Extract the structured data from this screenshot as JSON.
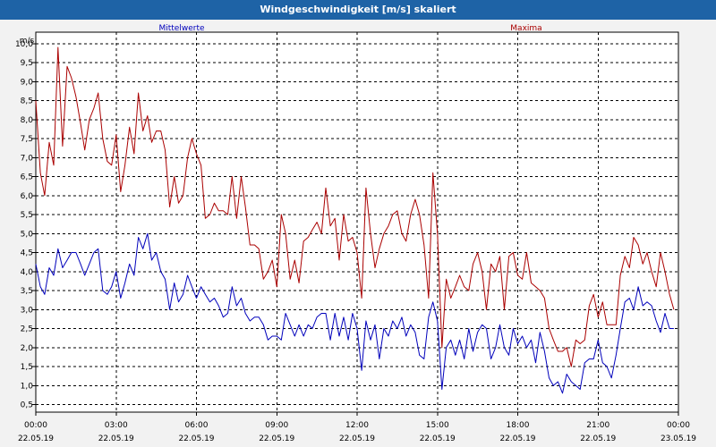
{
  "window": {
    "title": "Windgeschwindigkeit [m/s] skaliert"
  },
  "colors": {
    "titlebar": "#1e63a6",
    "mean": "#0000bb",
    "max": "#aa0000",
    "grid": "#000000"
  },
  "chart_data": {
    "type": "line",
    "title": "Windgeschwindigkeit [m/s] skaliert",
    "ylabel": "m/s",
    "ylim": [
      0.3,
      10.3
    ],
    "xlim_hours": [
      0,
      24
    ],
    "y_ticks": [
      "0,5",
      "1,0",
      "1,5",
      "2,0",
      "2,5",
      "3,0",
      "3,5",
      "4,0",
      "4,5",
      "5,0",
      "5,5",
      "6,0",
      "6,5",
      "7,0",
      "7,5",
      "8,0",
      "8,5",
      "9,0",
      "9,5",
      "10,0"
    ],
    "x_ticks": [
      {
        "time": "00:00",
        "date": "22.05.19"
      },
      {
        "time": "03:00",
        "date": "22.05.19"
      },
      {
        "time": "06:00",
        "date": "22.05.19"
      },
      {
        "time": "09:00",
        "date": "22.05.19"
      },
      {
        "time": "12:00",
        "date": "22.05.19"
      },
      {
        "time": "15:00",
        "date": "22.05.19"
      },
      {
        "time": "18:00",
        "date": "22.05.19"
      },
      {
        "time": "21:00",
        "date": "22.05.19"
      },
      {
        "time": "00:00",
        "date": "23.05.19"
      }
    ],
    "grid": true,
    "legend": [
      "Mittelwerte",
      "Maxima"
    ],
    "series": [
      {
        "name": "Mittelwerte",
        "color": "#0000bb",
        "points": [
          [
            0,
            4.2
          ],
          [
            0.17,
            3.6
          ],
          [
            0.33,
            3.4
          ],
          [
            0.5,
            4.1
          ],
          [
            0.67,
            3.9
          ],
          [
            0.83,
            4.6
          ],
          [
            1.0,
            4.1
          ],
          [
            1.17,
            4.3
          ],
          [
            1.33,
            4.5
          ],
          [
            1.5,
            4.5
          ],
          [
            1.67,
            4.2
          ],
          [
            1.83,
            3.9
          ],
          [
            2.0,
            4.2
          ],
          [
            2.17,
            4.5
          ],
          [
            2.33,
            4.6
          ],
          [
            2.5,
            3.5
          ],
          [
            2.67,
            3.4
          ],
          [
            2.83,
            3.6
          ],
          [
            3.0,
            4.0
          ],
          [
            3.17,
            3.3
          ],
          [
            3.33,
            3.7
          ],
          [
            3.5,
            4.2
          ],
          [
            3.67,
            3.9
          ],
          [
            3.83,
            4.9
          ],
          [
            4.0,
            4.6
          ],
          [
            4.17,
            5.0
          ],
          [
            4.33,
            4.3
          ],
          [
            4.5,
            4.5
          ],
          [
            4.67,
            4.0
          ],
          [
            4.83,
            3.8
          ],
          [
            5.0,
            3.0
          ],
          [
            5.17,
            3.7
          ],
          [
            5.33,
            3.2
          ],
          [
            5.5,
            3.4
          ],
          [
            5.67,
            3.9
          ],
          [
            5.83,
            3.6
          ],
          [
            6.0,
            3.3
          ],
          [
            6.17,
            3.6
          ],
          [
            6.33,
            3.4
          ],
          [
            6.5,
            3.2
          ],
          [
            6.67,
            3.3
          ],
          [
            6.83,
            3.1
          ],
          [
            7.0,
            2.8
          ],
          [
            7.17,
            2.9
          ],
          [
            7.33,
            3.6
          ],
          [
            7.5,
            3.1
          ],
          [
            7.67,
            3.3
          ],
          [
            7.83,
            2.9
          ],
          [
            8.0,
            2.7
          ],
          [
            8.17,
            2.8
          ],
          [
            8.33,
            2.8
          ],
          [
            8.5,
            2.6
          ],
          [
            8.67,
            2.2
          ],
          [
            8.83,
            2.3
          ],
          [
            9.0,
            2.3
          ],
          [
            9.17,
            2.2
          ],
          [
            9.33,
            2.9
          ],
          [
            9.5,
            2.6
          ],
          [
            9.67,
            2.3
          ],
          [
            9.83,
            2.6
          ],
          [
            10.0,
            2.3
          ],
          [
            10.17,
            2.6
          ],
          [
            10.33,
            2.5
          ],
          [
            10.5,
            2.8
          ],
          [
            10.67,
            2.9
          ],
          [
            10.83,
            2.9
          ],
          [
            11.0,
            2.2
          ],
          [
            11.17,
            2.9
          ],
          [
            11.33,
            2.3
          ],
          [
            11.5,
            2.8
          ],
          [
            11.67,
            2.2
          ],
          [
            11.83,
            2.9
          ],
          [
            12.0,
            2.5
          ],
          [
            12.17,
            1.4
          ],
          [
            12.33,
            2.7
          ],
          [
            12.5,
            2.2
          ],
          [
            12.67,
            2.6
          ],
          [
            12.83,
            1.7
          ],
          [
            13.0,
            2.5
          ],
          [
            13.17,
            2.3
          ],
          [
            13.33,
            2.7
          ],
          [
            13.5,
            2.5
          ],
          [
            13.67,
            2.8
          ],
          [
            13.83,
            2.3
          ],
          [
            14.0,
            2.6
          ],
          [
            14.17,
            2.4
          ],
          [
            14.33,
            1.8
          ],
          [
            14.5,
            1.7
          ],
          [
            14.67,
            2.8
          ],
          [
            14.83,
            3.2
          ],
          [
            15.0,
            2.7
          ],
          [
            15.17,
            0.9
          ],
          [
            15.33,
            2.0
          ],
          [
            15.5,
            2.2
          ],
          [
            15.67,
            1.8
          ],
          [
            15.83,
            2.2
          ],
          [
            16.0,
            1.7
          ],
          [
            16.17,
            2.5
          ],
          [
            16.33,
            1.9
          ],
          [
            16.5,
            2.4
          ],
          [
            16.67,
            2.6
          ],
          [
            16.83,
            2.5
          ],
          [
            17.0,
            1.7
          ],
          [
            17.17,
            2.0
          ],
          [
            17.33,
            2.6
          ],
          [
            17.5,
            2.0
          ],
          [
            17.67,
            1.8
          ],
          [
            17.83,
            2.5
          ],
          [
            18.0,
            2.1
          ],
          [
            18.17,
            2.3
          ],
          [
            18.33,
            2.0
          ],
          [
            18.5,
            2.2
          ],
          [
            18.67,
            1.6
          ],
          [
            18.83,
            2.4
          ],
          [
            19.0,
            1.9
          ],
          [
            19.17,
            1.2
          ],
          [
            19.33,
            1.0
          ],
          [
            19.5,
            1.1
          ],
          [
            19.67,
            0.8
          ],
          [
            19.83,
            1.3
          ],
          [
            20.0,
            1.1
          ],
          [
            20.17,
            1.0
          ],
          [
            20.33,
            0.9
          ],
          [
            20.5,
            1.6
          ],
          [
            20.67,
            1.7
          ],
          [
            20.83,
            1.7
          ],
          [
            21.0,
            2.2
          ],
          [
            21.17,
            1.6
          ],
          [
            21.33,
            1.5
          ],
          [
            21.5,
            1.2
          ],
          [
            21.67,
            1.8
          ],
          [
            21.83,
            2.5
          ],
          [
            22.0,
            3.2
          ],
          [
            22.17,
            3.3
          ],
          [
            22.33,
            3.0
          ],
          [
            22.5,
            3.6
          ],
          [
            22.67,
            3.1
          ],
          [
            22.83,
            3.2
          ],
          [
            23.0,
            3.1
          ],
          [
            23.17,
            2.7
          ],
          [
            23.33,
            2.4
          ],
          [
            23.5,
            2.9
          ],
          [
            23.67,
            2.5
          ],
          [
            23.83,
            2.5
          ]
        ]
      },
      {
        "name": "Maxima",
        "color": "#aa0000",
        "points": [
          [
            0,
            8.5
          ],
          [
            0.17,
            6.6
          ],
          [
            0.33,
            6.0
          ],
          [
            0.5,
            7.4
          ],
          [
            0.67,
            6.8
          ],
          [
            0.83,
            9.9
          ],
          [
            1.0,
            7.3
          ],
          [
            1.17,
            9.4
          ],
          [
            1.33,
            9.1
          ],
          [
            1.5,
            8.6
          ],
          [
            1.67,
            7.9
          ],
          [
            1.83,
            7.2
          ],
          [
            2.0,
            8.0
          ],
          [
            2.17,
            8.3
          ],
          [
            2.33,
            8.7
          ],
          [
            2.5,
            7.5
          ],
          [
            2.67,
            6.9
          ],
          [
            2.83,
            6.8
          ],
          [
            3.0,
            7.6
          ],
          [
            3.17,
            6.1
          ],
          [
            3.33,
            6.8
          ],
          [
            3.5,
            7.8
          ],
          [
            3.67,
            7.1
          ],
          [
            3.83,
            8.7
          ],
          [
            4.0,
            7.7
          ],
          [
            4.17,
            8.1
          ],
          [
            4.33,
            7.4
          ],
          [
            4.5,
            7.7
          ],
          [
            4.67,
            7.7
          ],
          [
            4.83,
            7.2
          ],
          [
            5.0,
            5.7
          ],
          [
            5.17,
            6.5
          ],
          [
            5.33,
            5.8
          ],
          [
            5.5,
            6.0
          ],
          [
            5.67,
            7.0
          ],
          [
            5.83,
            7.5
          ],
          [
            6.0,
            7.1
          ],
          [
            6.17,
            6.8
          ],
          [
            6.33,
            5.4
          ],
          [
            6.5,
            5.5
          ],
          [
            6.67,
            5.8
          ],
          [
            6.83,
            5.6
          ],
          [
            7.0,
            5.6
          ],
          [
            7.17,
            5.5
          ],
          [
            7.33,
            6.5
          ],
          [
            7.5,
            5.4
          ],
          [
            7.67,
            6.5
          ],
          [
            7.83,
            5.7
          ],
          [
            8.0,
            4.7
          ],
          [
            8.17,
            4.7
          ],
          [
            8.33,
            4.6
          ],
          [
            8.5,
            3.8
          ],
          [
            8.67,
            4.0
          ],
          [
            8.83,
            4.3
          ],
          [
            9.0,
            3.6
          ],
          [
            9.17,
            5.5
          ],
          [
            9.33,
            5.0
          ],
          [
            9.5,
            3.8
          ],
          [
            9.67,
            4.3
          ],
          [
            9.83,
            3.7
          ],
          [
            10.0,
            4.8
          ],
          [
            10.17,
            4.9
          ],
          [
            10.33,
            5.1
          ],
          [
            10.5,
            5.3
          ],
          [
            10.67,
            5.0
          ],
          [
            10.83,
            6.2
          ],
          [
            11.0,
            5.2
          ],
          [
            11.17,
            5.4
          ],
          [
            11.33,
            4.3
          ],
          [
            11.5,
            5.5
          ],
          [
            11.67,
            4.8
          ],
          [
            11.83,
            4.9
          ],
          [
            12.0,
            4.5
          ],
          [
            12.17,
            3.3
          ],
          [
            12.33,
            6.2
          ],
          [
            12.5,
            5.0
          ],
          [
            12.67,
            4.1
          ],
          [
            12.83,
            4.6
          ],
          [
            13.0,
            5.0
          ],
          [
            13.17,
            5.2
          ],
          [
            13.33,
            5.5
          ],
          [
            13.5,
            5.6
          ],
          [
            13.67,
            5.0
          ],
          [
            13.83,
            4.8
          ],
          [
            14.0,
            5.5
          ],
          [
            14.17,
            5.9
          ],
          [
            14.33,
            5.5
          ],
          [
            14.5,
            4.7
          ],
          [
            14.67,
            3.3
          ],
          [
            14.83,
            6.6
          ],
          [
            15.0,
            5.0
          ],
          [
            15.17,
            2.0
          ],
          [
            15.33,
            3.8
          ],
          [
            15.5,
            3.3
          ],
          [
            15.67,
            3.6
          ],
          [
            15.83,
            3.9
          ],
          [
            16.0,
            3.6
          ],
          [
            16.17,
            3.5
          ],
          [
            16.33,
            4.2
          ],
          [
            16.5,
            4.5
          ],
          [
            16.67,
            4.0
          ],
          [
            16.83,
            3.0
          ],
          [
            17.0,
            4.2
          ],
          [
            17.17,
            4.0
          ],
          [
            17.33,
            4.4
          ],
          [
            17.5,
            3.0
          ],
          [
            17.67,
            4.4
          ],
          [
            17.83,
            4.5
          ],
          [
            18.0,
            3.9
          ],
          [
            18.17,
            3.8
          ],
          [
            18.33,
            4.5
          ],
          [
            18.5,
            3.7
          ],
          [
            18.67,
            3.6
          ],
          [
            18.83,
            3.5
          ],
          [
            19.0,
            3.3
          ],
          [
            19.17,
            2.5
          ],
          [
            19.33,
            2.2
          ],
          [
            19.5,
            1.9
          ],
          [
            19.67,
            1.9
          ],
          [
            19.83,
            2.0
          ],
          [
            20.0,
            1.5
          ],
          [
            20.17,
            2.2
          ],
          [
            20.33,
            2.1
          ],
          [
            20.5,
            2.2
          ],
          [
            20.67,
            3.1
          ],
          [
            20.83,
            3.4
          ],
          [
            21.0,
            2.8
          ],
          [
            21.17,
            3.2
          ],
          [
            21.33,
            2.6
          ],
          [
            21.5,
            2.6
          ],
          [
            21.67,
            2.6
          ],
          [
            21.83,
            3.9
          ],
          [
            22.0,
            4.4
          ],
          [
            22.17,
            4.1
          ],
          [
            22.33,
            4.9
          ],
          [
            22.5,
            4.7
          ],
          [
            22.67,
            4.2
          ],
          [
            22.83,
            4.5
          ],
          [
            23.0,
            4.0
          ],
          [
            23.17,
            3.6
          ],
          [
            23.33,
            4.5
          ],
          [
            23.5,
            4.0
          ],
          [
            23.67,
            3.4
          ],
          [
            23.83,
            3.0
          ]
        ]
      }
    ]
  }
}
